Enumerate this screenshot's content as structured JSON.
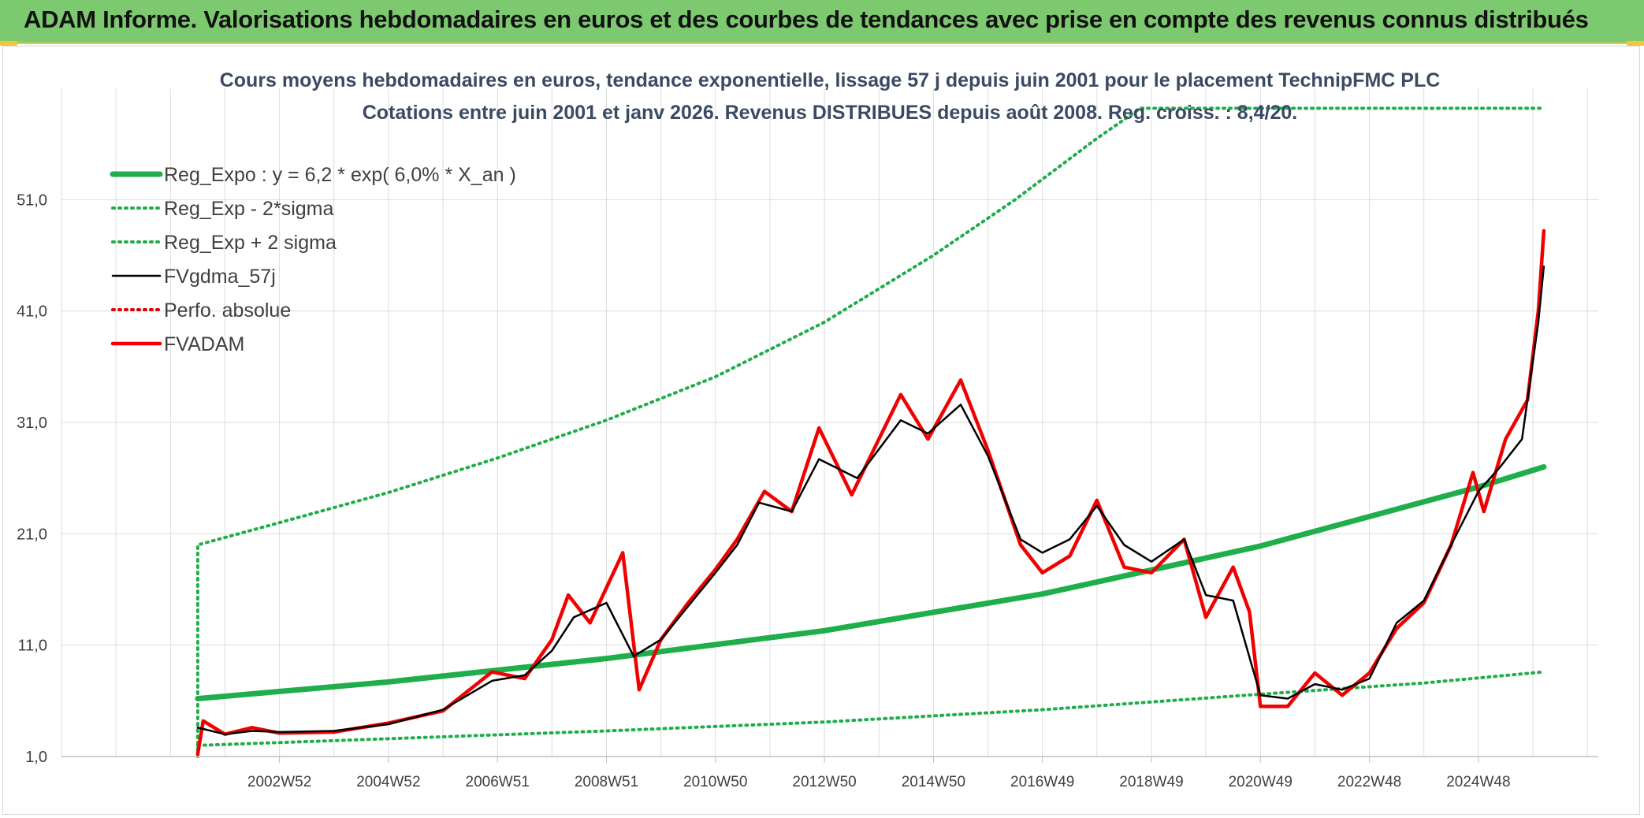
{
  "banner": {
    "title": "ADAM Informe. Valorisations hebdomadaires en euros et des courbes de tendances avec prise en compte des revenus connus distribués"
  },
  "colors": {
    "banner_bg": "#7dc970",
    "trend": "#1fae4b",
    "band": "#1fae4b",
    "smooth": "#000000",
    "perf": "#e00000",
    "fvadam": "#f00000"
  },
  "chart_data": {
    "type": "line",
    "subtitle_lines": [
      "Cours moyens hebdomadaires en euros, tendance exponentielle, lissage 57 j depuis juin 2001 pour le placement TechnipFMC PLC",
      "Cotations entre juin 2001 et janv 2026. Revenus DISTRIBUES depuis août 2008. Reg. croiss. : 8,4/20."
    ],
    "ylim": [
      1,
      61
    ],
    "yticks": [
      "1,0",
      "11,0",
      "21,0",
      "31,0",
      "41,0",
      "51,0"
    ],
    "xlim": [
      1999.0,
      2027.2
    ],
    "xticks": [
      {
        "x": 2003.0,
        "label": "2002W52"
      },
      {
        "x": 2005.0,
        "label": "2004W52"
      },
      {
        "x": 2007.0,
        "label": "2006W51"
      },
      {
        "x": 2009.0,
        "label": "2008W51"
      },
      {
        "x": 2011.0,
        "label": "2010W50"
      },
      {
        "x": 2013.0,
        "label": "2012W50"
      },
      {
        "x": 2015.0,
        "label": "2014W50"
      },
      {
        "x": 2017.0,
        "label": "2016W49"
      },
      {
        "x": 2019.0,
        "label": "2018W49"
      },
      {
        "x": 2021.0,
        "label": "2020W49"
      },
      {
        "x": 2023.0,
        "label": "2022W48"
      },
      {
        "x": 2025.0,
        "label": "2024W48"
      }
    ],
    "grid": true,
    "legend_position": "top-left",
    "series": [
      {
        "name": "Reg_Expo : y = 6,2 * exp( 6,0% *  X_an )",
        "style": "solid-thick",
        "color": "#1fae4b",
        "points": [
          [
            2001.5,
            6.2
          ],
          [
            2005,
            7.7
          ],
          [
            2009,
            9.8
          ],
          [
            2013,
            12.3
          ],
          [
            2017,
            15.6
          ],
          [
            2021,
            19.9
          ],
          [
            2025,
            25.2
          ],
          [
            2026.2,
            27
          ]
        ]
      },
      {
        "name": "Reg_Exp - 2*sigma",
        "style": "dotted",
        "color": "#1fae4b",
        "points": [
          [
            2001.5,
            2.0
          ],
          [
            2005,
            2.6
          ],
          [
            2009,
            3.3
          ],
          [
            2013,
            4.1
          ],
          [
            2017,
            5.2
          ],
          [
            2021,
            6.6
          ],
          [
            2024,
            7.6
          ],
          [
            2026.2,
            8.6
          ]
        ]
      },
      {
        "name": "Reg_Exp + 2 sigma",
        "style": "dotted",
        "color": "#1fae4b",
        "points": [
          [
            2001.5,
            1.0
          ],
          [
            2001.5,
            20.0
          ],
          [
            2003,
            22.0
          ],
          [
            2005,
            24.7
          ],
          [
            2007,
            27.8
          ],
          [
            2009,
            31.2
          ],
          [
            2011,
            35.1
          ],
          [
            2013,
            40.0
          ],
          [
            2015,
            46.0
          ],
          [
            2016.5,
            51.0
          ],
          [
            2018,
            56.5
          ],
          [
            2018.8,
            59.2
          ],
          [
            2026.2,
            59.2
          ]
        ]
      },
      {
        "name": "FVgdma_57j",
        "style": "solid",
        "color": "#000000",
        "points": [
          [
            2001.5,
            3.6
          ],
          [
            2002,
            3.0
          ],
          [
            2002.5,
            3.3
          ],
          [
            2003,
            3.2
          ],
          [
            2004,
            3.3
          ],
          [
            2005,
            3.9
          ],
          [
            2006,
            5.2
          ],
          [
            2006.9,
            7.8
          ],
          [
            2007.5,
            8.3
          ],
          [
            2008,
            10.5
          ],
          [
            2008.4,
            13.5
          ],
          [
            2009,
            14.8
          ],
          [
            2009.5,
            10.0
          ],
          [
            2010,
            11.5
          ],
          [
            2010.5,
            14.5
          ],
          [
            2011,
            17.5
          ],
          [
            2011.4,
            20.0
          ],
          [
            2011.8,
            23.8
          ],
          [
            2012.4,
            23.0
          ],
          [
            2012.9,
            27.7
          ],
          [
            2013.6,
            26.0
          ],
          [
            2014.4,
            31.2
          ],
          [
            2014.9,
            30.0
          ],
          [
            2015.5,
            32.6
          ],
          [
            2016,
            28.0
          ],
          [
            2016.6,
            20.5
          ],
          [
            2017,
            19.3
          ],
          [
            2017.5,
            20.5
          ],
          [
            2018,
            23.5
          ],
          [
            2018.5,
            20.0
          ],
          [
            2019,
            18.5
          ],
          [
            2019.6,
            20.5
          ],
          [
            2020,
            15.5
          ],
          [
            2020.5,
            15.0
          ],
          [
            2021,
            6.5
          ],
          [
            2021.5,
            6.2
          ],
          [
            2022,
            7.5
          ],
          [
            2022.5,
            7.0
          ],
          [
            2023,
            8.0
          ],
          [
            2023.5,
            13.0
          ],
          [
            2024,
            15.0
          ],
          [
            2024.5,
            20.0
          ],
          [
            2025,
            24.8
          ],
          [
            2025.4,
            27.0
          ],
          [
            2025.8,
            29.5
          ],
          [
            2026.1,
            40.0
          ],
          [
            2026.2,
            45.0
          ]
        ]
      },
      {
        "name": "Perfo. absolue",
        "style": "dotted",
        "color": "#e00000",
        "points": []
      },
      {
        "name": "FVADAM",
        "style": "solid-thick",
        "color": "#f00000",
        "points": [
          [
            2001.5,
            1.2
          ],
          [
            2001.6,
            4.2
          ],
          [
            2002,
            3.0
          ],
          [
            2002.5,
            3.6
          ],
          [
            2003,
            3.1
          ],
          [
            2004,
            3.2
          ],
          [
            2005,
            4.0
          ],
          [
            2006,
            5.1
          ],
          [
            2006.9,
            8.6
          ],
          [
            2007.5,
            8.0
          ],
          [
            2008,
            11.5
          ],
          [
            2008.3,
            15.5
          ],
          [
            2008.7,
            13.0
          ],
          [
            2009.3,
            19.3
          ],
          [
            2009.6,
            7.0
          ],
          [
            2010,
            11.5
          ],
          [
            2010.5,
            14.8
          ],
          [
            2011,
            17.8
          ],
          [
            2011.4,
            20.5
          ],
          [
            2011.9,
            24.8
          ],
          [
            2012.4,
            23.0
          ],
          [
            2012.9,
            30.5
          ],
          [
            2013.5,
            24.5
          ],
          [
            2013.9,
            28.5
          ],
          [
            2014.4,
            33.5
          ],
          [
            2014.9,
            29.5
          ],
          [
            2015.5,
            34.8
          ],
          [
            2016,
            28.5
          ],
          [
            2016.6,
            20.0
          ],
          [
            2017,
            17.5
          ],
          [
            2017.5,
            19.0
          ],
          [
            2018,
            24.0
          ],
          [
            2018.5,
            18.0
          ],
          [
            2019,
            17.5
          ],
          [
            2019.6,
            20.5
          ],
          [
            2020,
            13.5
          ],
          [
            2020.5,
            18.0
          ],
          [
            2020.8,
            14.0
          ],
          [
            2021,
            5.5
          ],
          [
            2021.5,
            5.5
          ],
          [
            2022,
            8.5
          ],
          [
            2022.5,
            6.5
          ],
          [
            2023,
            8.5
          ],
          [
            2023.5,
            12.5
          ],
          [
            2024,
            14.8
          ],
          [
            2024.5,
            20.0
          ],
          [
            2024.9,
            26.5
          ],
          [
            2025.1,
            23.0
          ],
          [
            2025.5,
            29.5
          ],
          [
            2025.9,
            33.0
          ],
          [
            2026.1,
            41.0
          ],
          [
            2026.2,
            48.2
          ]
        ]
      }
    ]
  }
}
